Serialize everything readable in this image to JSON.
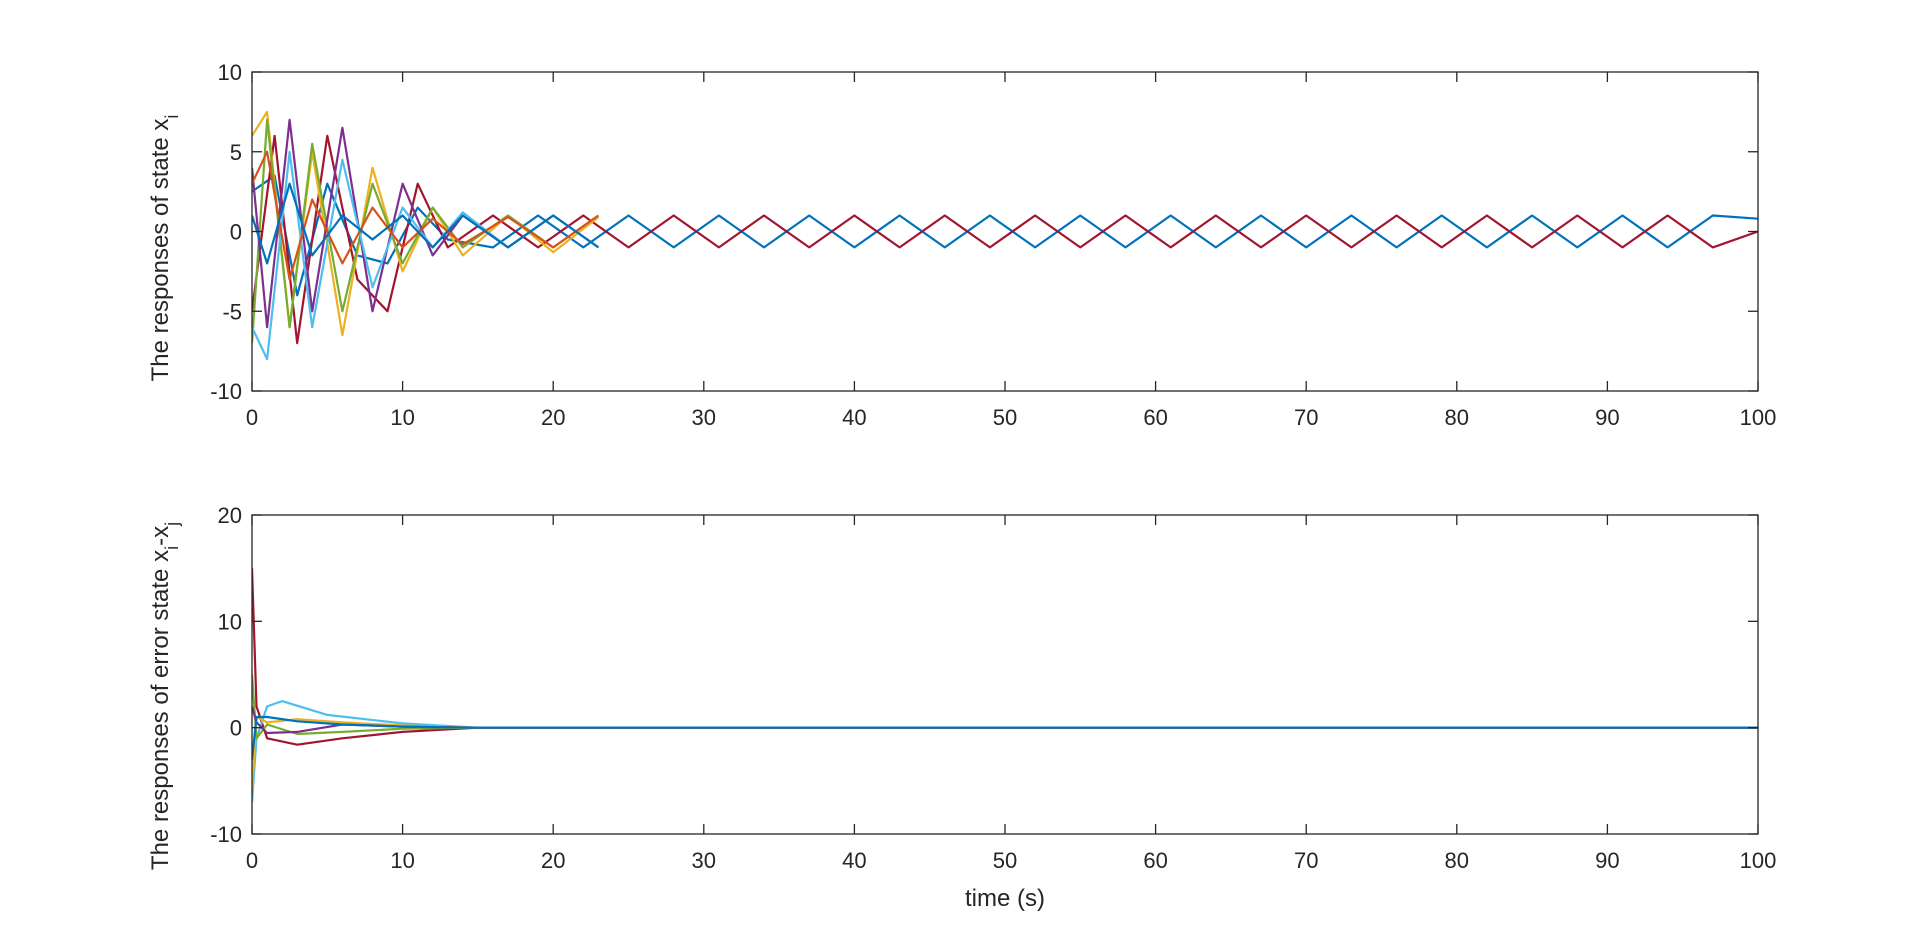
{
  "chart_data": [
    {
      "type": "line",
      "title": "",
      "ylabel": "The responses of state x",
      "ylabel_sub": "i",
      "xlim": [
        0,
        100
      ],
      "ylim": [
        -10,
        10
      ],
      "xticks": [
        "0",
        "10",
        "20",
        "30",
        "40",
        "50",
        "60",
        "70",
        "80",
        "90",
        "100"
      ],
      "yticks": [
        "-10",
        "-5",
        "0",
        "5",
        "10"
      ],
      "ytick_values": [
        -10,
        -5,
        0,
        5,
        10
      ],
      "grid": false,
      "legend": "none",
      "series_count_approx": 40,
      "series": [
        {
          "color": "#0072BD",
          "x": [
            0,
            1.5,
            3,
            5,
            7,
            9,
            11,
            13,
            16,
            19,
            22,
            25,
            28,
            31,
            34,
            37,
            40,
            43,
            46,
            49,
            52,
            55,
            58,
            61,
            64,
            67,
            70,
            73,
            76,
            79,
            82,
            85,
            88,
            91,
            94,
            97,
            100
          ],
          "values": [
            2.5,
            3.5,
            -4,
            3,
            -1.5,
            -2,
            1.5,
            -0.5,
            -1,
            1,
            -1,
            1,
            -1,
            1,
            -1,
            1,
            -1,
            1,
            -1,
            1,
            -1,
            1,
            -1,
            1,
            -1,
            1,
            -1,
            1,
            -1,
            1,
            -1,
            1,
            -1,
            1,
            -1,
            1,
            0.8
          ]
        },
        {
          "color": "#A2142F",
          "x": [
            0,
            1.5,
            3,
            5,
            7,
            9,
            11,
            13,
            16,
            19,
            22,
            25,
            28,
            31,
            34,
            37,
            40,
            43,
            46,
            49,
            52,
            55,
            58,
            61,
            64,
            67,
            70,
            73,
            76,
            79,
            82,
            85,
            88,
            91,
            94,
            97,
            100
          ],
          "values": [
            -5,
            6,
            -7,
            6,
            -3,
            -5,
            3,
            -1,
            1,
            -1,
            1,
            -1,
            1,
            -1,
            1,
            -1,
            1,
            -1,
            1,
            -1,
            1,
            -1,
            1,
            -1,
            1,
            -1,
            1,
            -1,
            1,
            -1,
            1,
            -1,
            1,
            -1,
            1,
            -1,
            0
          ]
        },
        {
          "color": "#EDB120",
          "x": [
            0,
            1,
            2.5,
            4,
            6,
            8,
            10,
            12,
            14,
            17,
            20,
            23
          ],
          "values": [
            6,
            7.5,
            -6,
            5,
            -6.5,
            4,
            -2.5,
            1.5,
            -1.5,
            1,
            -1.3,
            0.9
          ]
        },
        {
          "color": "#77AC30",
          "x": [
            0,
            1,
            2.5,
            4,
            6,
            8,
            10,
            12,
            14,
            17,
            20,
            23
          ],
          "values": [
            -7,
            7,
            -6,
            5.5,
            -5,
            3,
            -2,
            1.5,
            -1,
            1,
            -1,
            1
          ]
        },
        {
          "color": "#7E2F8E",
          "x": [
            0,
            1,
            2.5,
            4,
            6,
            8,
            10,
            12,
            14,
            17,
            20,
            23
          ],
          "values": [
            4,
            -6,
            7,
            -5,
            6.5,
            -5,
            3,
            -1.5,
            1,
            -1,
            1,
            -1
          ]
        },
        {
          "color": "#4DBEEE",
          "x": [
            0,
            1,
            2.5,
            4,
            6,
            8,
            10,
            12,
            14,
            17,
            20,
            23
          ],
          "values": [
            -6,
            -8,
            5,
            -6,
            4.5,
            -3.5,
            1.5,
            -1,
            1.2,
            -1,
            1,
            -1
          ]
        },
        {
          "color": "#D95319",
          "x": [
            0,
            1,
            2.5,
            4,
            6,
            8,
            10,
            12,
            14,
            17,
            20,
            23
          ],
          "values": [
            3,
            5,
            -3,
            2,
            -2,
            1.5,
            -1,
            0.8,
            -0.8,
            0.9,
            -1,
            1
          ]
        },
        {
          "color": "#0072BD",
          "x": [
            0,
            1,
            2.5,
            4,
            6,
            8,
            10,
            12,
            14,
            17,
            20,
            23
          ],
          "values": [
            1,
            -2,
            3,
            -1.5,
            1,
            -0.5,
            1,
            -1,
            1,
            -1,
            1,
            -1
          ]
        }
      ]
    },
    {
      "type": "line",
      "title": "",
      "xlabel": "time (s)",
      "ylabel": "The responses of error state x",
      "ylabel_sub1": "i",
      "ylabel_mid": "-x",
      "ylabel_sub2": "j",
      "xlim": [
        0,
        100
      ],
      "ylim": [
        -10,
        20
      ],
      "xticks": [
        "0",
        "10",
        "20",
        "30",
        "40",
        "50",
        "60",
        "70",
        "80",
        "90",
        "100"
      ],
      "yticks": [
        "-10",
        "0",
        "10",
        "20"
      ],
      "ytick_values": [
        -10,
        0,
        10,
        20
      ],
      "grid": false,
      "legend": "none",
      "series": [
        {
          "color": "#A2142F",
          "x": [
            0,
            0.3,
            1,
            3,
            6,
            10,
            15,
            20,
            100
          ],
          "values": [
            15,
            2,
            -1,
            -1.6,
            -1,
            -0.4,
            0,
            0,
            0
          ]
        },
        {
          "color": "#4DBEEE",
          "x": [
            0,
            0.3,
            1,
            2,
            5,
            10,
            15,
            20,
            100
          ],
          "values": [
            -7,
            -1,
            2,
            2.5,
            1.2,
            0.4,
            0,
            0,
            0
          ]
        },
        {
          "color": "#EDB120",
          "x": [
            0,
            0.3,
            1,
            3,
            6,
            10,
            15,
            20,
            100
          ],
          "values": [
            -6,
            1,
            0.5,
            0.8,
            0.5,
            0.2,
            0,
            0,
            0
          ]
        },
        {
          "color": "#77AC30",
          "x": [
            0,
            0.3,
            1,
            3,
            6,
            10,
            15,
            20,
            100
          ],
          "values": [
            5,
            -1,
            0.3,
            -0.6,
            -0.4,
            -0.1,
            0,
            0,
            0
          ]
        },
        {
          "color": "#7E2F8E",
          "x": [
            0,
            0.3,
            1,
            3,
            6,
            10,
            15,
            20,
            100
          ],
          "values": [
            2,
            0.5,
            -0.5,
            -0.4,
            0.3,
            0.1,
            0,
            0,
            0
          ]
        },
        {
          "color": "#0072BD",
          "x": [
            0,
            0.3,
            1,
            3,
            6,
            10,
            15,
            20,
            100
          ],
          "values": [
            -3,
            1,
            1,
            0.6,
            0.3,
            0.1,
            0,
            0,
            0
          ]
        }
      ]
    }
  ]
}
